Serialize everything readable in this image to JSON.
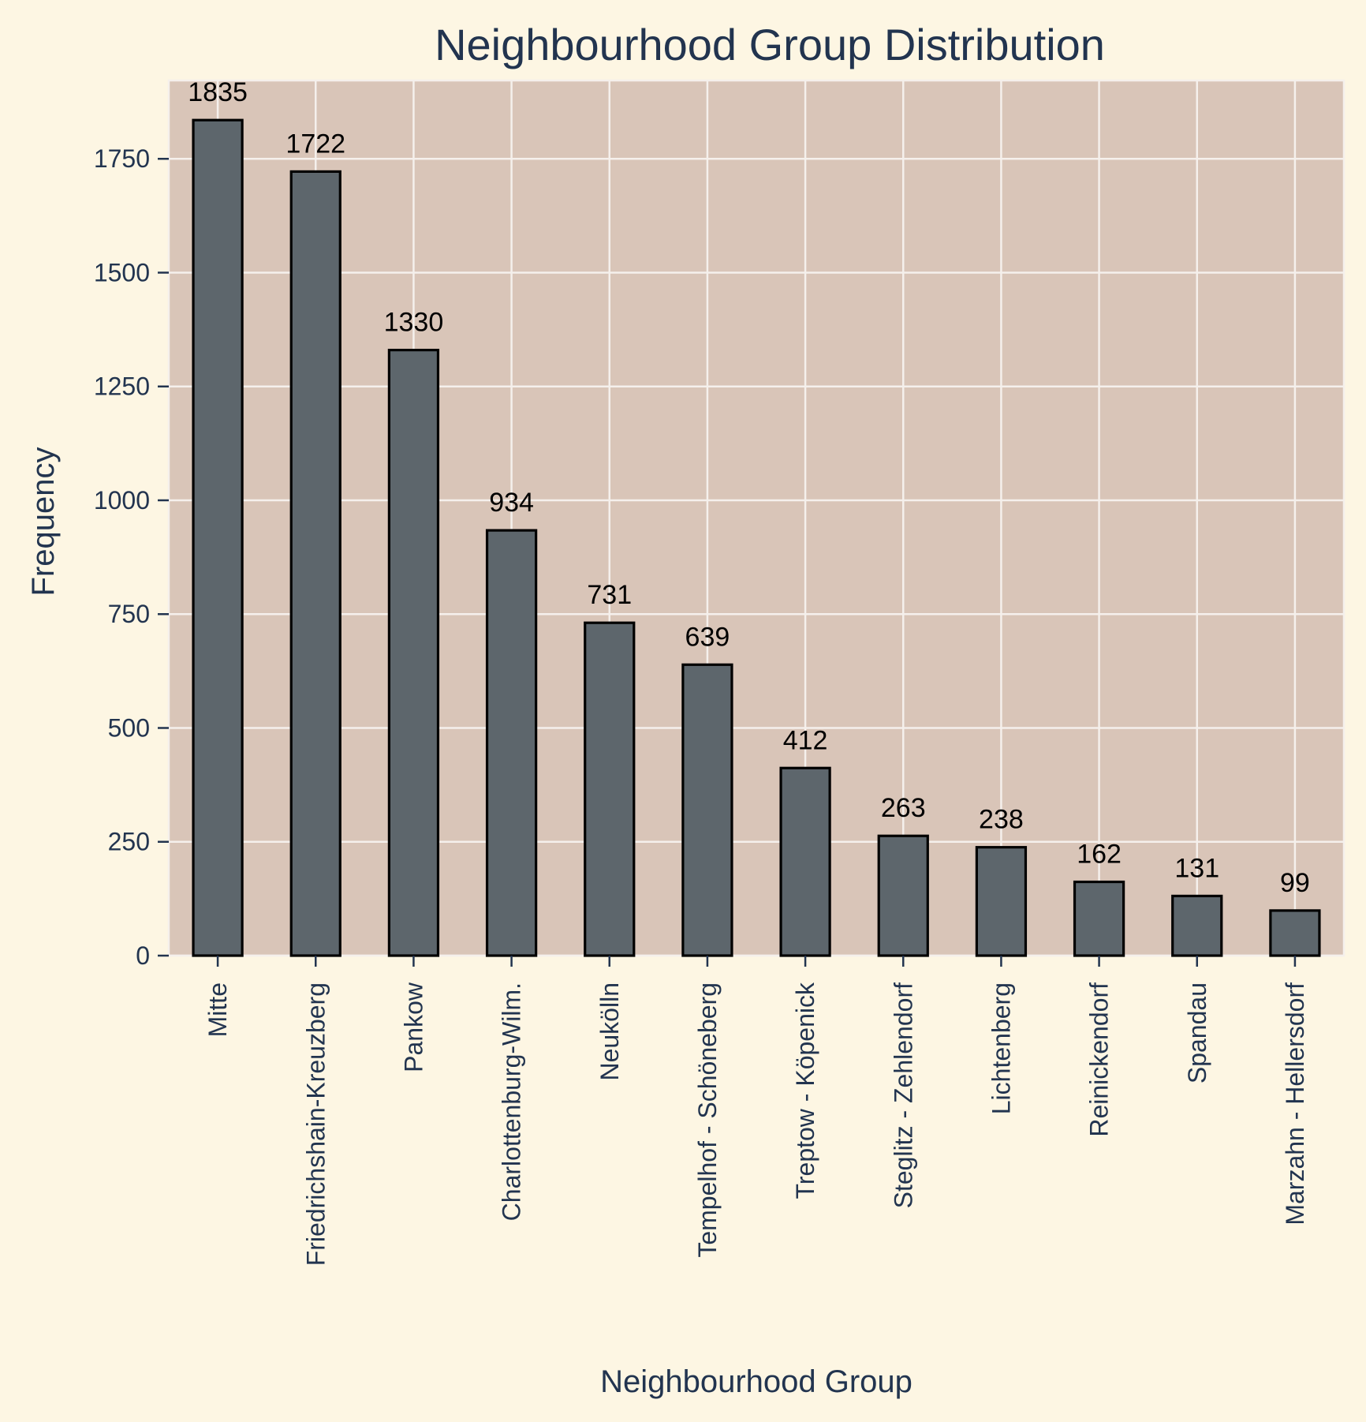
{
  "chart_data": {
    "type": "bar",
    "title": "Neighbourhood Group Distribution",
    "xlabel": "Neighbourhood Group",
    "ylabel": "Frequency",
    "categories": [
      "Mitte",
      "Friedrichshain-Kreuzberg",
      "Pankow",
      "Charlottenburg-Wilm.",
      "Neukölln",
      "Tempelhof - Schöneberg",
      "Treptow - Köpenick",
      "Steglitz - Zehlendorf",
      "Lichtenberg",
      "Reinickendorf",
      "Spandau",
      "Marzahn - Hellersdorf"
    ],
    "values": [
      1835,
      1722,
      1330,
      934,
      731,
      639,
      412,
      263,
      238,
      162,
      131,
      99
    ],
    "data_labels": [
      "1835",
      "1722",
      "1330",
      "934",
      "731",
      "639",
      "412",
      "263",
      "238",
      "162",
      "131",
      "99"
    ],
    "yticks": [
      0,
      250,
      500,
      750,
      1000,
      1250,
      1500,
      1750
    ],
    "ytick_labels": [
      "0",
      "250",
      "500",
      "750",
      "1000",
      "1250",
      "1500",
      "1750"
    ],
    "ylim": [
      0,
      1922
    ],
    "grid": true,
    "colors": {
      "page_background": "#fdf6e3",
      "plot_background": "#d9c5b8",
      "bar_fill": "#5d666c",
      "bar_edge": "#000000",
      "grid": "#f5f0ec",
      "text": "#22344f",
      "data_label": "#000000"
    }
  }
}
